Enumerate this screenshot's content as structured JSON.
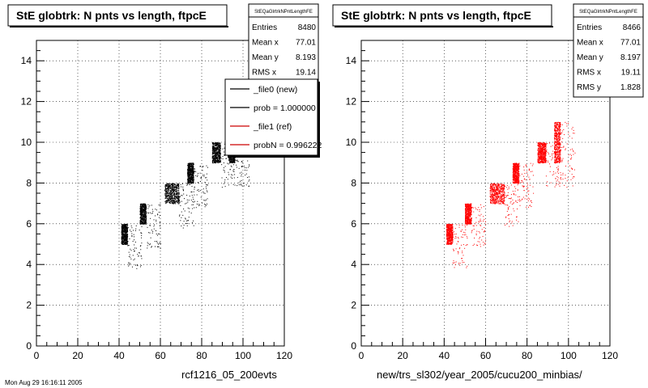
{
  "chart_data": [
    {
      "type": "scatter",
      "title": "StE globtrk: N pnts vs length, ftpcE",
      "xlabel": "rcf1216_05_200evts",
      "ylabel": "",
      "xlim": [
        0,
        120
      ],
      "ylim": [
        0,
        15
      ],
      "x_ticks": [
        "0",
        "20",
        "40",
        "60",
        "80",
        "100",
        "120"
      ],
      "y_ticks": [
        "0",
        "2",
        "4",
        "6",
        "8",
        "10",
        "12",
        "14"
      ],
      "grid": true,
      "marker_color": "#000000",
      "clusters": [
        {
          "n": 5,
          "x_range": [
            41,
            44
          ],
          "y_range": [
            5,
            6
          ]
        },
        {
          "n": 6,
          "x_range": [
            50,
            53
          ],
          "y_range": [
            6,
            7
          ]
        },
        {
          "n": 7,
          "x_range": [
            62,
            69
          ],
          "y_range": [
            7,
            8
          ]
        },
        {
          "n": 8,
          "x_range": [
            73,
            76
          ],
          "y_range": [
            8,
            9
          ]
        },
        {
          "n": 9,
          "x_range": [
            85,
            89
          ],
          "y_range": [
            9,
            10
          ]
        },
        {
          "n": 10,
          "x_range": [
            93,
            96
          ],
          "y_range": [
            9,
            10.2
          ]
        }
      ],
      "stats": {
        "name": "StEQaGlrtrkNPntLengthFE",
        "rows": [
          {
            "label": "Entries",
            "value": "8480"
          },
          {
            "label": "Mean x",
            "value": "77.01"
          },
          {
            "label": "Mean y",
            "value": "8.193"
          },
          {
            "label": "RMS x",
            "value": "19.14"
          }
        ]
      },
      "legend": {
        "placement": "top-right",
        "entries": [
          {
            "label": "_file0 (new)",
            "color": "#000000"
          },
          {
            "label": "prob = 1.000000",
            "color": "#000000"
          },
          {
            "label": "_file1 (ref)",
            "color": "#cc0000"
          },
          {
            "label": "probN = 0.996222",
            "color": "#cc0000"
          }
        ]
      }
    },
    {
      "type": "scatter",
      "title": "StE globtrk: N pnts vs length, ftpcE",
      "xlabel": "new/trs_sl302/year_2005/cucu200_minbias/",
      "ylabel": "",
      "xlim": [
        0,
        120
      ],
      "ylim": [
        0,
        15
      ],
      "x_ticks": [
        "0",
        "20",
        "40",
        "60",
        "80",
        "100",
        "120"
      ],
      "y_ticks": [
        "0",
        "2",
        "4",
        "6",
        "8",
        "10",
        "12",
        "14"
      ],
      "grid": true,
      "marker_color": "#ff0000",
      "clusters": [
        {
          "n": 5,
          "x_range": [
            41,
            44
          ],
          "y_range": [
            5,
            6
          ]
        },
        {
          "n": 6,
          "x_range": [
            50,
            53
          ],
          "y_range": [
            6,
            7
          ]
        },
        {
          "n": 7,
          "x_range": [
            62,
            69
          ],
          "y_range": [
            7,
            8
          ]
        },
        {
          "n": 8,
          "x_range": [
            73,
            76
          ],
          "y_range": [
            8,
            9
          ]
        },
        {
          "n": 9,
          "x_range": [
            85,
            89
          ],
          "y_range": [
            9,
            10
          ]
        },
        {
          "n": 10,
          "x_range": [
            93,
            96
          ],
          "y_range": [
            9,
            11
          ]
        }
      ],
      "stats": {
        "name": "StEQaGlrtrkNPntLengthFE",
        "rows": [
          {
            "label": "Entries",
            "value": "8466"
          },
          {
            "label": "Mean x",
            "value": "77.01"
          },
          {
            "label": "Mean y",
            "value": "8.197"
          },
          {
            "label": "RMS x",
            "value": "19.11"
          },
          {
            "label": "RMS y",
            "value": "1.828"
          }
        ]
      }
    }
  ],
  "footer": "Mon Aug 29 16:16:11 2005"
}
